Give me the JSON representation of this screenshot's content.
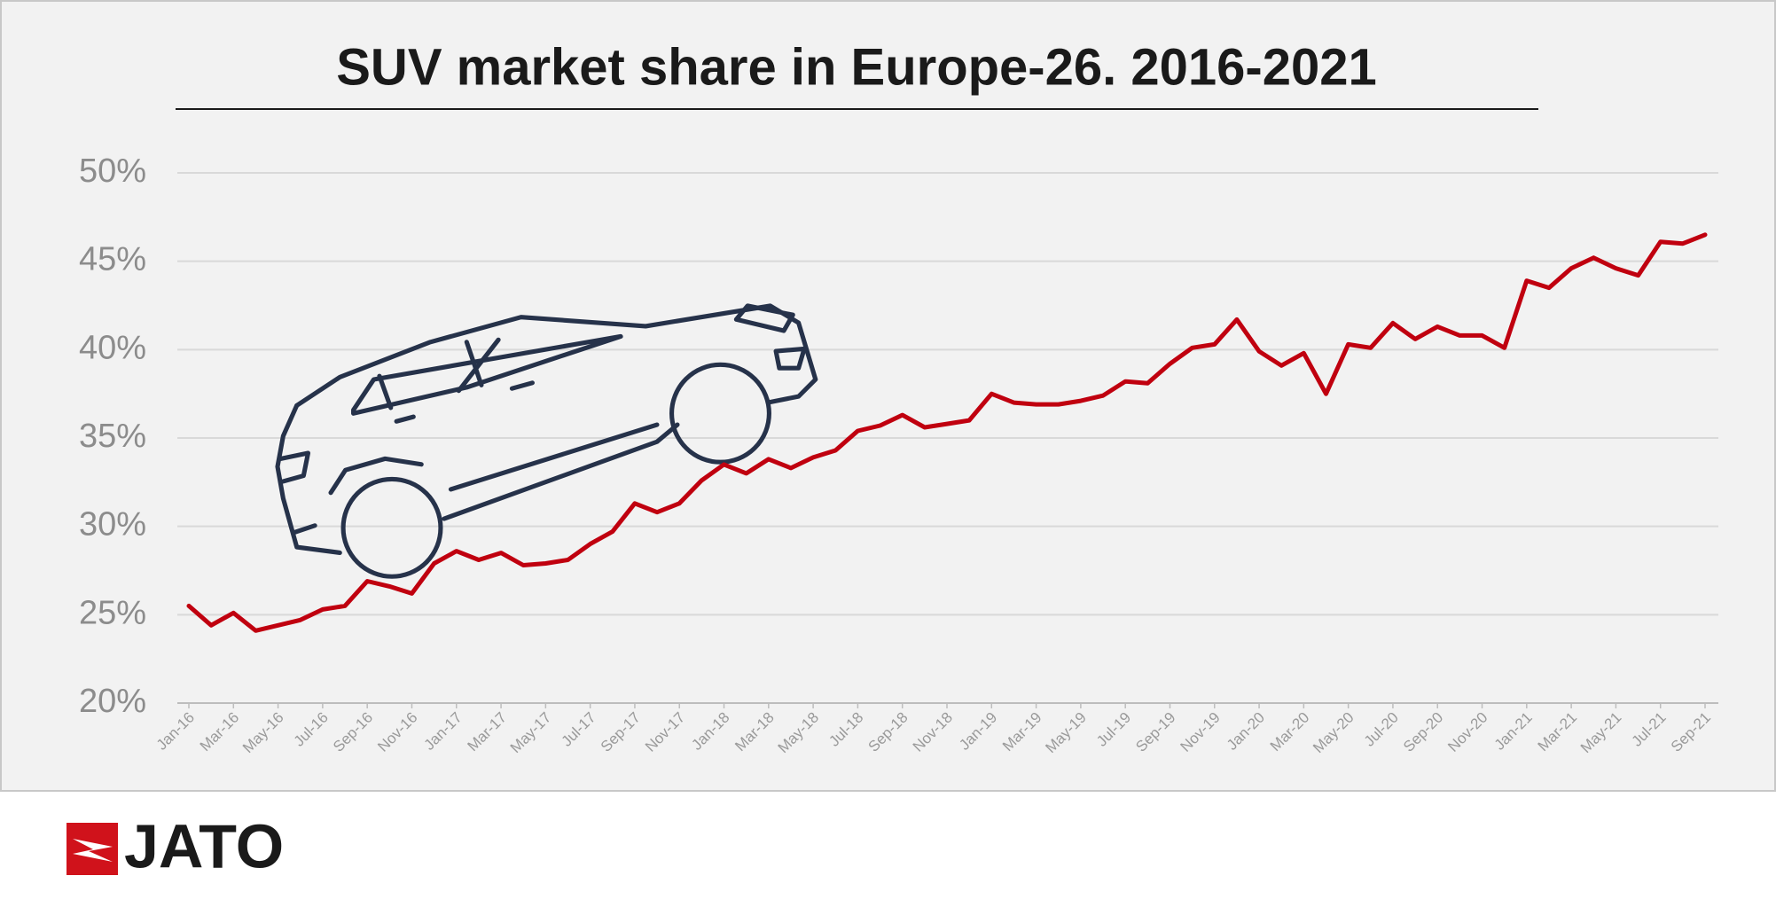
{
  "chart_data": {
    "type": "line",
    "title": "SUV market share in Europe-26. 2016-2021",
    "categories": [
      "Jan-16",
      null,
      "Mar-16",
      null,
      "May-16",
      null,
      "Jul-16",
      null,
      "Sep-16",
      null,
      "Nov-16",
      null,
      "Jan-17",
      null,
      "Mar-17",
      null,
      "May-17",
      null,
      "Jul-17",
      null,
      "Sep-17",
      null,
      "Nov-17",
      null,
      "Jan-18",
      null,
      "Mar-18",
      null,
      "May-18",
      null,
      "Jul-18",
      null,
      "Sep-18",
      null,
      "Nov-18",
      null,
      "Jan-19",
      null,
      "Mar-19",
      null,
      "May-19",
      null,
      "Jul-19",
      null,
      "Sep-19",
      null,
      "Nov-19",
      null,
      "Jan-20",
      null,
      "Mar-20",
      null,
      "May-20",
      null,
      "Jul-20",
      null,
      "Sep-20",
      null,
      "Nov-20",
      null,
      "Jan-21",
      null,
      "Mar-21",
      null,
      "May-21",
      null,
      "Jul-21",
      null,
      "Sep-21"
    ],
    "series": [
      {
        "color": "#c0000f",
        "values": [
          25.5,
          24.4,
          25.1,
          24.1,
          24.4,
          24.7,
          25.3,
          25.5,
          26.9,
          26.6,
          26.2,
          27.9,
          28.6,
          28.1,
          28.5,
          27.8,
          27.9,
          28.1,
          29.0,
          29.7,
          31.3,
          30.8,
          31.3,
          32.6,
          33.5,
          33.0,
          33.8,
          33.3,
          33.9,
          34.3,
          35.4,
          35.7,
          36.3,
          35.6,
          35.8,
          36.0,
          37.5,
          37.0,
          36.9,
          36.9,
          37.1,
          37.4,
          38.2,
          38.1,
          39.2,
          40.1,
          40.3,
          41.7,
          39.9,
          39.1,
          39.8,
          37.5,
          40.3,
          40.1,
          41.5,
          40.6,
          41.3,
          40.8,
          40.8,
          40.1,
          43.9,
          43.5,
          44.6,
          45.2,
          44.6,
          44.2,
          46.1,
          46.0,
          46.5
        ]
      }
    ],
    "ylim": [
      20,
      50
    ],
    "yticks": [
      {
        "value": 20,
        "label": "20%"
      },
      {
        "value": 25,
        "label": "25%"
      },
      {
        "value": 30,
        "label": "30%"
      },
      {
        "value": 35,
        "label": "35%"
      },
      {
        "value": 40,
        "label": "40%"
      },
      {
        "value": 45,
        "label": "45%"
      },
      {
        "value": 50,
        "label": "50%"
      }
    ],
    "grid": true
  },
  "logo": "JATO"
}
